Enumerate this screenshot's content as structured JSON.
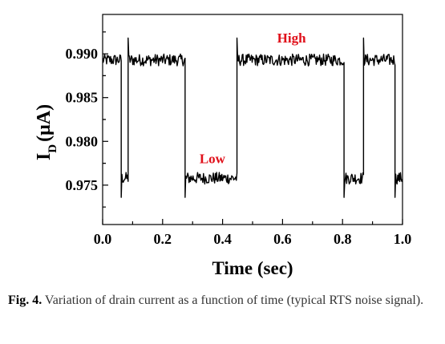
{
  "chart_data": {
    "type": "line",
    "xlabel": "Time (sec)",
    "ylabel_main": "I",
    "ylabel_sub": "D",
    "ylabel_unit": "(μA)",
    "xlim": [
      0.0,
      1.0
    ],
    "ylim": [
      0.9705,
      0.9945
    ],
    "xticks": [
      0.0,
      0.2,
      0.4,
      0.6,
      0.8,
      1.0
    ],
    "xtick_labels": [
      "0.0",
      "0.2",
      "0.4",
      "0.6",
      "0.8",
      "1.0"
    ],
    "yticks": [
      0.975,
      0.98,
      0.985,
      0.99
    ],
    "ytick_labels": [
      "0.975",
      "0.980",
      "0.985",
      "0.990"
    ],
    "grid": false,
    "annotations": [
      {
        "text": "High",
        "x": 0.63,
        "y": 0.9913
      },
      {
        "text": "Low",
        "x": 0.366,
        "y": 0.9775
      }
    ],
    "series": [
      {
        "color": "#000000",
        "levels": {
          "high": 0.9893,
          "low": 0.9758
        },
        "segments": [
          {
            "x_start": 0.0,
            "x_end": 0.062,
            "level": "high"
          },
          {
            "x_start": 0.062,
            "x_end": 0.085,
            "level": "low"
          },
          {
            "x_start": 0.085,
            "x_end": 0.275,
            "level": "high"
          },
          {
            "x_start": 0.275,
            "x_end": 0.448,
            "level": "low"
          },
          {
            "x_start": 0.448,
            "x_end": 0.805,
            "level": "high"
          },
          {
            "x_start": 0.805,
            "x_end": 0.87,
            "level": "low"
          },
          {
            "x_start": 0.87,
            "x_end": 0.975,
            "level": "high"
          },
          {
            "x_start": 0.975,
            "x_end": 1.0,
            "level": "low"
          }
        ]
      }
    ]
  },
  "caption": {
    "label": "Fig. 4.",
    "text": " Variation of drain current as a function of time (typical RTS noise signal)."
  }
}
